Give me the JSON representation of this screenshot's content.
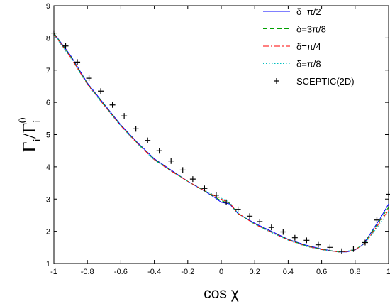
{
  "chart_data": {
    "type": "line",
    "xlabel": "cos χ",
    "ylabel": {
      "main": "Γ",
      "sub": "i",
      "sep": "/",
      "main2": "Γ",
      "sub2": "i",
      "sup2": "0"
    },
    "xlim": [
      -1,
      1
    ],
    "ylim": [
      1,
      9
    ],
    "xticks": [
      "-1",
      "-0.8",
      "-0.6",
      "-0.4",
      "-0.2",
      "0",
      "0.2",
      "0.4",
      "0.6",
      "0.8",
      "1"
    ],
    "yticks": [
      "1",
      "2",
      "3",
      "4",
      "5",
      "6",
      "7",
      "8",
      "9"
    ],
    "grid": false,
    "legend_position": "top-right",
    "series": [
      {
        "name": "δ=π/2",
        "style": "solid",
        "color": "#0000ff",
        "x": [
          -1,
          -0.9,
          -0.8,
          -0.7,
          -0.6,
          -0.5,
          -0.4,
          -0.3,
          -0.2,
          -0.1,
          -0.04,
          0.0,
          0.05,
          0.1,
          0.2,
          0.3,
          0.4,
          0.5,
          0.6,
          0.7,
          0.75,
          0.8,
          0.85,
          0.9,
          0.95,
          1.0
        ],
        "y": [
          8.15,
          7.45,
          6.6,
          5.95,
          5.3,
          4.75,
          4.25,
          3.9,
          3.55,
          3.25,
          3.05,
          2.9,
          2.85,
          2.55,
          2.25,
          2.0,
          1.75,
          1.58,
          1.45,
          1.36,
          1.36,
          1.42,
          1.6,
          2.0,
          2.4,
          2.85
        ]
      },
      {
        "name": "δ=3π/8",
        "style": "dashed",
        "color": "#00a000",
        "x": [
          -1,
          -0.9,
          -0.8,
          -0.7,
          -0.6,
          -0.5,
          -0.4,
          -0.3,
          -0.2,
          -0.1,
          -0.04,
          0.0,
          0.05,
          0.1,
          0.2,
          0.3,
          0.4,
          0.5,
          0.6,
          0.7,
          0.75,
          0.8,
          0.85,
          0.9,
          0.95,
          1.0
        ],
        "y": [
          8.15,
          7.42,
          6.58,
          5.93,
          5.28,
          4.73,
          4.23,
          3.88,
          3.55,
          3.25,
          3.07,
          2.95,
          2.87,
          2.55,
          2.22,
          1.98,
          1.74,
          1.56,
          1.44,
          1.36,
          1.37,
          1.43,
          1.6,
          1.97,
          2.35,
          2.75
        ]
      },
      {
        "name": "δ=π/4",
        "style": "dashdot",
        "color": "#ff0000",
        "x": [
          -1,
          -0.9,
          -0.8,
          -0.7,
          -0.6,
          -0.5,
          -0.4,
          -0.3,
          -0.2,
          -0.1,
          -0.04,
          0.0,
          0.05,
          0.1,
          0.2,
          0.3,
          0.4,
          0.5,
          0.6,
          0.7,
          0.75,
          0.8,
          0.85,
          0.9,
          0.95,
          1.0
        ],
        "y": [
          8.12,
          7.4,
          6.56,
          5.91,
          5.27,
          4.72,
          4.22,
          3.87,
          3.55,
          3.26,
          3.1,
          3.0,
          2.88,
          2.56,
          2.22,
          1.97,
          1.73,
          1.55,
          1.43,
          1.36,
          1.37,
          1.43,
          1.58,
          1.93,
          2.3,
          2.65
        ]
      },
      {
        "name": "δ=π/8",
        "style": "dotted",
        "color": "#00bfbf",
        "x": [
          -1,
          -0.9,
          -0.8,
          -0.7,
          -0.6,
          -0.5,
          -0.4,
          -0.3,
          -0.2,
          -0.1,
          -0.04,
          0.0,
          0.05,
          0.1,
          0.2,
          0.3,
          0.4,
          0.5,
          0.6,
          0.7,
          0.75,
          0.8,
          0.85,
          0.9,
          0.95,
          1.0
        ],
        "y": [
          8.1,
          7.38,
          6.55,
          5.9,
          5.26,
          4.71,
          4.21,
          3.86,
          3.55,
          3.27,
          3.12,
          3.03,
          2.9,
          2.57,
          2.22,
          1.96,
          1.72,
          1.54,
          1.42,
          1.36,
          1.38,
          1.44,
          1.57,
          1.9,
          2.25,
          2.6
        ]
      },
      {
        "name": "SCEPTIC(2D)",
        "style": "marker-plus",
        "color": "#000000",
        "x": [
          -1,
          -0.93,
          -0.86,
          -0.79,
          -0.72,
          -0.65,
          -0.58,
          -0.51,
          -0.44,
          -0.37,
          -0.3,
          -0.23,
          -0.17,
          -0.1,
          -0.03,
          0.03,
          0.1,
          0.17,
          0.23,
          0.3,
          0.37,
          0.44,
          0.51,
          0.58,
          0.65,
          0.72,
          0.79,
          0.86,
          0.93,
          1.0
        ],
        "y": [
          8.15,
          7.75,
          7.25,
          6.75,
          6.35,
          5.92,
          5.58,
          5.18,
          4.82,
          4.5,
          4.18,
          3.9,
          3.62,
          3.33,
          3.12,
          2.9,
          2.68,
          2.47,
          2.3,
          2.12,
          1.98,
          1.8,
          1.72,
          1.58,
          1.5,
          1.38,
          1.45,
          1.65,
          2.35,
          3.15
        ]
      }
    ]
  }
}
